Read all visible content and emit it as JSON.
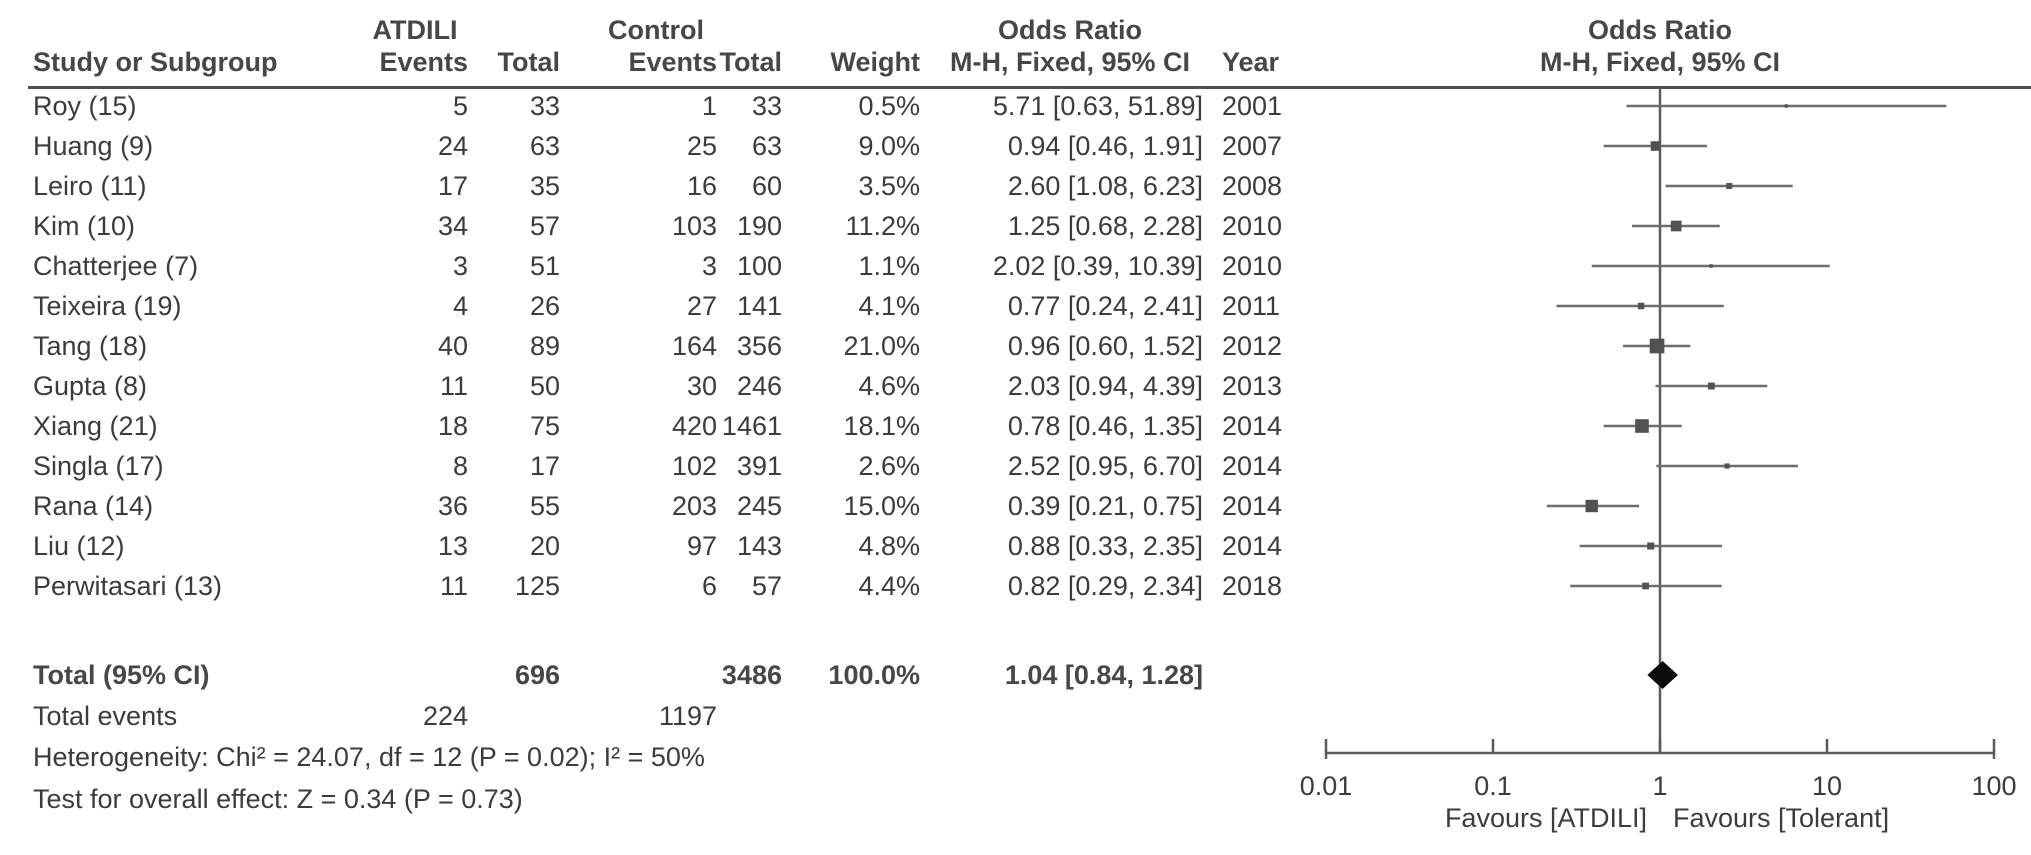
{
  "header": {
    "group1": "ATDILI",
    "group2": "Control",
    "col_study": "Study or Subgroup",
    "col_events": "Events",
    "col_total": "Total",
    "col_weight": "Weight",
    "col_or_line1": "Odds Ratio",
    "col_or_line2": "M-H, Fixed, 95% CI",
    "col_year": "Year",
    "plot_title_line1": "Odds Ratio",
    "plot_title_line2": "M-H, Fixed, 95% CI"
  },
  "chart_data": {
    "type": "scatter",
    "variant": "forest-plot",
    "x_scale": "log10",
    "x_range": [
      0.01,
      100
    ],
    "x_ticks": [
      0.01,
      0.1,
      1,
      10,
      100
    ],
    "x_tick_labels": [
      "0.01",
      "0.1",
      "1",
      "10",
      "100"
    ],
    "no_effect_line": 1,
    "favours_left": "Favours [ATDILI]",
    "favours_right": "Favours [Tolerant]",
    "studies": [
      {
        "label": "Roy (15)",
        "events1": 5,
        "total1": 33,
        "events2": 1,
        "total2": 33,
        "weight": "0.5%",
        "weight_pct": 0.5,
        "or": 5.71,
        "ci_low": 0.63,
        "ci_high": 51.89,
        "or_text": "5.71 [0.63, 51.89]",
        "year": "2001"
      },
      {
        "label": "Huang (9)",
        "events1": 24,
        "total1": 63,
        "events2": 25,
        "total2": 63,
        "weight": "9.0%",
        "weight_pct": 9.0,
        "or": 0.94,
        "ci_low": 0.46,
        "ci_high": 1.91,
        "or_text": "0.94 [0.46, 1.91]",
        "year": "2007"
      },
      {
        "label": "Leiro (11)",
        "events1": 17,
        "total1": 35,
        "events2": 16,
        "total2": 60,
        "weight": "3.5%",
        "weight_pct": 3.5,
        "or": 2.6,
        "ci_low": 1.08,
        "ci_high": 6.23,
        "or_text": "2.60 [1.08, 6.23]",
        "year": "2008"
      },
      {
        "label": "Kim (10)",
        "events1": 34,
        "total1": 57,
        "events2": 103,
        "total2": 190,
        "weight": "11.2%",
        "weight_pct": 11.2,
        "or": 1.25,
        "ci_low": 0.68,
        "ci_high": 2.28,
        "or_text": "1.25 [0.68, 2.28]",
        "year": "2010"
      },
      {
        "label": "Chatterjee (7)",
        "events1": 3,
        "total1": 51,
        "events2": 3,
        "total2": 100,
        "weight": "1.1%",
        "weight_pct": 1.1,
        "or": 2.02,
        "ci_low": 0.39,
        "ci_high": 10.39,
        "or_text": "2.02 [0.39, 10.39]",
        "year": "2010"
      },
      {
        "label": "Teixeira (19)",
        "events1": 4,
        "total1": 26,
        "events2": 27,
        "total2": 141,
        "weight": "4.1%",
        "weight_pct": 4.1,
        "or": 0.77,
        "ci_low": 0.24,
        "ci_high": 2.41,
        "or_text": "0.77 [0.24, 2.41]",
        "year": "2011"
      },
      {
        "label": "Tang (18)",
        "events1": 40,
        "total1": 89,
        "events2": 164,
        "total2": 356,
        "weight": "21.0%",
        "weight_pct": 21.0,
        "or": 0.96,
        "ci_low": 0.6,
        "ci_high": 1.52,
        "or_text": "0.96 [0.60, 1.52]",
        "year": "2012"
      },
      {
        "label": "Gupta (8)",
        "events1": 11,
        "total1": 50,
        "events2": 30,
        "total2": 246,
        "weight": "4.6%",
        "weight_pct": 4.6,
        "or": 2.03,
        "ci_low": 0.94,
        "ci_high": 4.39,
        "or_text": "2.03 [0.94, 4.39]",
        "year": "2013"
      },
      {
        "label": "Xiang (21)",
        "events1": 18,
        "total1": 75,
        "events2": 420,
        "total2": 1461,
        "weight": "18.1%",
        "weight_pct": 18.1,
        "or": 0.78,
        "ci_low": 0.46,
        "ci_high": 1.35,
        "or_text": "0.78 [0.46, 1.35]",
        "year": "2014"
      },
      {
        "label": "Singla (17)",
        "events1": 8,
        "total1": 17,
        "events2": 102,
        "total2": 391,
        "weight": "2.6%",
        "weight_pct": 2.6,
        "or": 2.52,
        "ci_low": 0.95,
        "ci_high": 6.7,
        "or_text": "2.52 [0.95, 6.70]",
        "year": "2014"
      },
      {
        "label": "Rana (14)",
        "events1": 36,
        "total1": 55,
        "events2": 203,
        "total2": 245,
        "weight": "15.0%",
        "weight_pct": 15.0,
        "or": 0.39,
        "ci_low": 0.21,
        "ci_high": 0.75,
        "or_text": "0.39 [0.21, 0.75]",
        "year": "2014"
      },
      {
        "label": "Liu (12)",
        "events1": 13,
        "total1": 20,
        "events2": 97,
        "total2": 143,
        "weight": "4.8%",
        "weight_pct": 4.8,
        "or": 0.88,
        "ci_low": 0.33,
        "ci_high": 2.35,
        "or_text": "0.88 [0.33, 2.35]",
        "year": "2014"
      },
      {
        "label": "Perwitasari (13)",
        "events1": 11,
        "total1": 125,
        "events2": 6,
        "total2": 57,
        "weight": "4.4%",
        "weight_pct": 4.4,
        "or": 0.82,
        "ci_low": 0.29,
        "ci_high": 2.34,
        "or_text": "0.82 [0.29, 2.34]",
        "year": "2018"
      }
    ],
    "total": {
      "label": "Total (95% CI)",
      "total1": 696,
      "total2": 3486,
      "weight": "100.0%",
      "weight_pct": 100.0,
      "or": 1.04,
      "ci_low": 0.84,
      "ci_high": 1.28,
      "or_text": "1.04 [0.84, 1.28]"
    },
    "total_events": {
      "label": "Total events",
      "events1": 224,
      "events2": 1197
    },
    "heterogeneity": "Heterogeneity: Chi² = 24.07, df = 12 (P = 0.02); I² = 50%",
    "overall_effect": "Test for overall effect: Z = 0.34 (P = 0.73)"
  },
  "colors": {
    "text": "#3c3c3c",
    "rule": "#4f4f4f",
    "ci_line": "#6d6d6d",
    "square": "#525252",
    "diamond": "#0b0b0b",
    "axis": "#5a5a5a"
  }
}
